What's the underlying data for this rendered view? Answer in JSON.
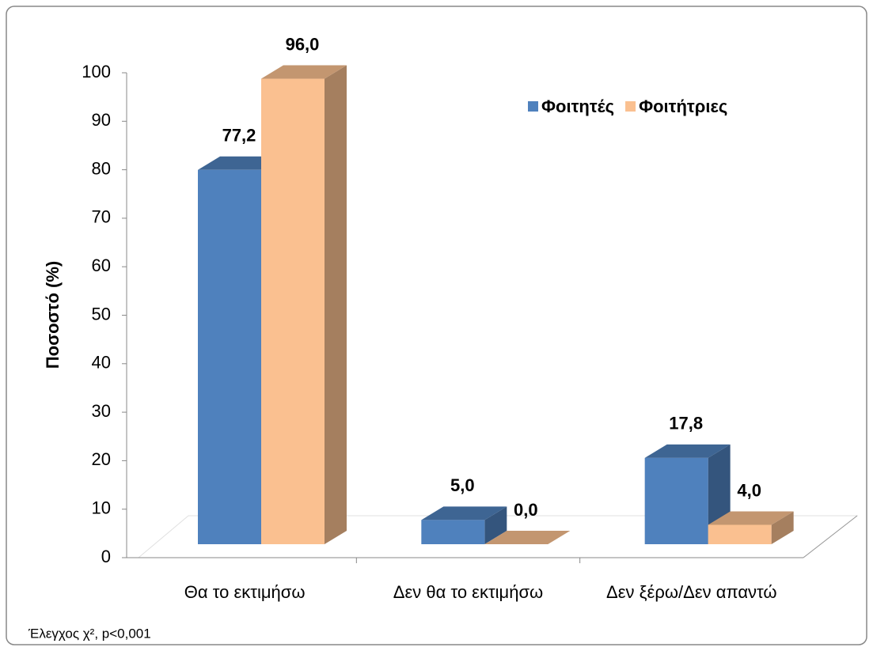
{
  "chart_data": {
    "type": "bar3d",
    "y_label": "Ποσοστό (%)",
    "categories": [
      "Θα το εκτιμήσω",
      "Δεν θα το εκτιμήσω",
      "Δεν ξέρω/Δεν απαντώ"
    ],
    "series": [
      {
        "name": "Φοιτητές",
        "color": "#4f81bd",
        "values": [
          77.2,
          5.0,
          17.8
        ],
        "value_labels": [
          "77,2",
          "5,0",
          "17,8"
        ]
      },
      {
        "name": "Φοιτήτριες",
        "color": "#fac090",
        "values": [
          96.0,
          0.0,
          4.0
        ],
        "value_labels": [
          "96,0",
          "0,0",
          "4,0"
        ]
      }
    ],
    "ylim": [
      0,
      100
    ],
    "yticks": [
      0,
      10,
      20,
      30,
      40,
      50,
      60,
      70,
      80,
      90,
      100
    ],
    "legend": "top-right",
    "note": "Έλεγχος χ², p<0,001"
  }
}
